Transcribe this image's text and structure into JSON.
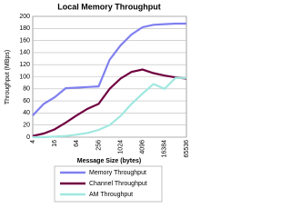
{
  "chart_data": {
    "type": "line",
    "title": "Local Memory Throughput",
    "x_label": "Message Size (bytes)",
    "y_label": "Throughput (MBps)",
    "categories": [
      "4",
      null,
      "16",
      null,
      "64",
      null,
      "256",
      null,
      "1024",
      null,
      "4096",
      null,
      "16384",
      null,
      "65536"
    ],
    "series": [
      {
        "name": "Memory Throughput",
        "color": "#8080f0",
        "values": [
          36,
          55,
          66,
          81,
          82,
          83,
          84,
          128,
          152,
          170,
          182,
          186,
          187,
          188,
          188
        ]
      },
      {
        "name": "Channel Throughput",
        "color": "#700040",
        "values": [
          2,
          6,
          13,
          24,
          36,
          47,
          55,
          80,
          97,
          108,
          112,
          106,
          102,
          99,
          97
        ]
      },
      {
        "name": "AM Throughput",
        "color": "#a0e8e0",
        "values": [
          0,
          0,
          1,
          2,
          4,
          7,
          12,
          20,
          35,
          55,
          72,
          88,
          80,
          98,
          98
        ]
      }
    ],
    "ylim": [
      0,
      200
    ],
    "yticks": [
      0,
      20,
      40,
      60,
      80,
      100,
      120,
      140,
      160,
      180,
      200
    ],
    "grid": true,
    "legend": "bottom"
  }
}
